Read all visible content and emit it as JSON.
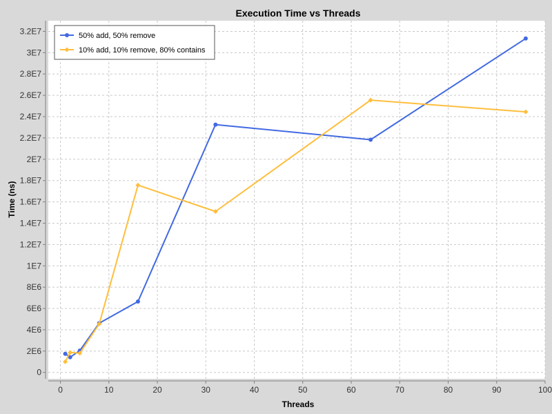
{
  "chart_data": {
    "type": "line",
    "title": "Execution Time vs Threads",
    "xlabel": "Threads",
    "ylabel": "Time (ns)",
    "xlim": [
      -2.5,
      100
    ],
    "ylim": [
      -600000,
      33000000
    ],
    "x_ticks": [
      {
        "value": 0,
        "label": "0"
      },
      {
        "value": 10,
        "label": "10"
      },
      {
        "value": 20,
        "label": "20"
      },
      {
        "value": 30,
        "label": "30"
      },
      {
        "value": 40,
        "label": "40"
      },
      {
        "value": 50,
        "label": "50"
      },
      {
        "value": 60,
        "label": "60"
      },
      {
        "value": 70,
        "label": "70"
      },
      {
        "value": 80,
        "label": "80"
      },
      {
        "value": 90,
        "label": "90"
      },
      {
        "value": 100,
        "label": "100"
      }
    ],
    "y_ticks": [
      {
        "value": 0,
        "label": "0"
      },
      {
        "value": 2000000,
        "label": "2E6"
      },
      {
        "value": 4000000,
        "label": "4E6"
      },
      {
        "value": 6000000,
        "label": "6E6"
      },
      {
        "value": 8000000,
        "label": "8E6"
      },
      {
        "value": 10000000,
        "label": "1E7"
      },
      {
        "value": 12000000,
        "label": "1.2E7"
      },
      {
        "value": 14000000,
        "label": "1.4E7"
      },
      {
        "value": 16000000,
        "label": "1.6E7"
      },
      {
        "value": 18000000,
        "label": "1.8E7"
      },
      {
        "value": 20000000,
        "label": "2E7"
      },
      {
        "value": 22000000,
        "label": "2.2E7"
      },
      {
        "value": 24000000,
        "label": "2.4E7"
      },
      {
        "value": 26000000,
        "label": "2.6E7"
      },
      {
        "value": 28000000,
        "label": "2.8E7"
      },
      {
        "value": 30000000,
        "label": "3E7"
      },
      {
        "value": 32000000,
        "label": "3.2E7"
      }
    ],
    "grid": true,
    "legend_position": "top-left",
    "series": [
      {
        "name": "50% add, 50% remove",
        "color": "#4169e1",
        "marker": "circle",
        "points": [
          {
            "x": 1,
            "y": 1750000
          },
          {
            "x": 2,
            "y": 1420000
          },
          {
            "x": 4,
            "y": 2050000
          },
          {
            "x": 8,
            "y": 4620000
          },
          {
            "x": 16,
            "y": 6650000
          },
          {
            "x": 32,
            "y": 23250000
          },
          {
            "x": 64,
            "y": 21830000
          },
          {
            "x": 96,
            "y": 31330000
          }
        ]
      },
      {
        "name": "10% add, 10% remove, 80% contains",
        "color": "#ffbe3c",
        "marker": "diamond",
        "points": [
          {
            "x": 1,
            "y": 1000000
          },
          {
            "x": 2,
            "y": 1870000
          },
          {
            "x": 4,
            "y": 1800000
          },
          {
            "x": 8,
            "y": 4550000
          },
          {
            "x": 16,
            "y": 17570000
          },
          {
            "x": 32,
            "y": 15100000
          },
          {
            "x": 64,
            "y": 25550000
          },
          {
            "x": 96,
            "y": 24450000
          }
        ]
      }
    ]
  }
}
